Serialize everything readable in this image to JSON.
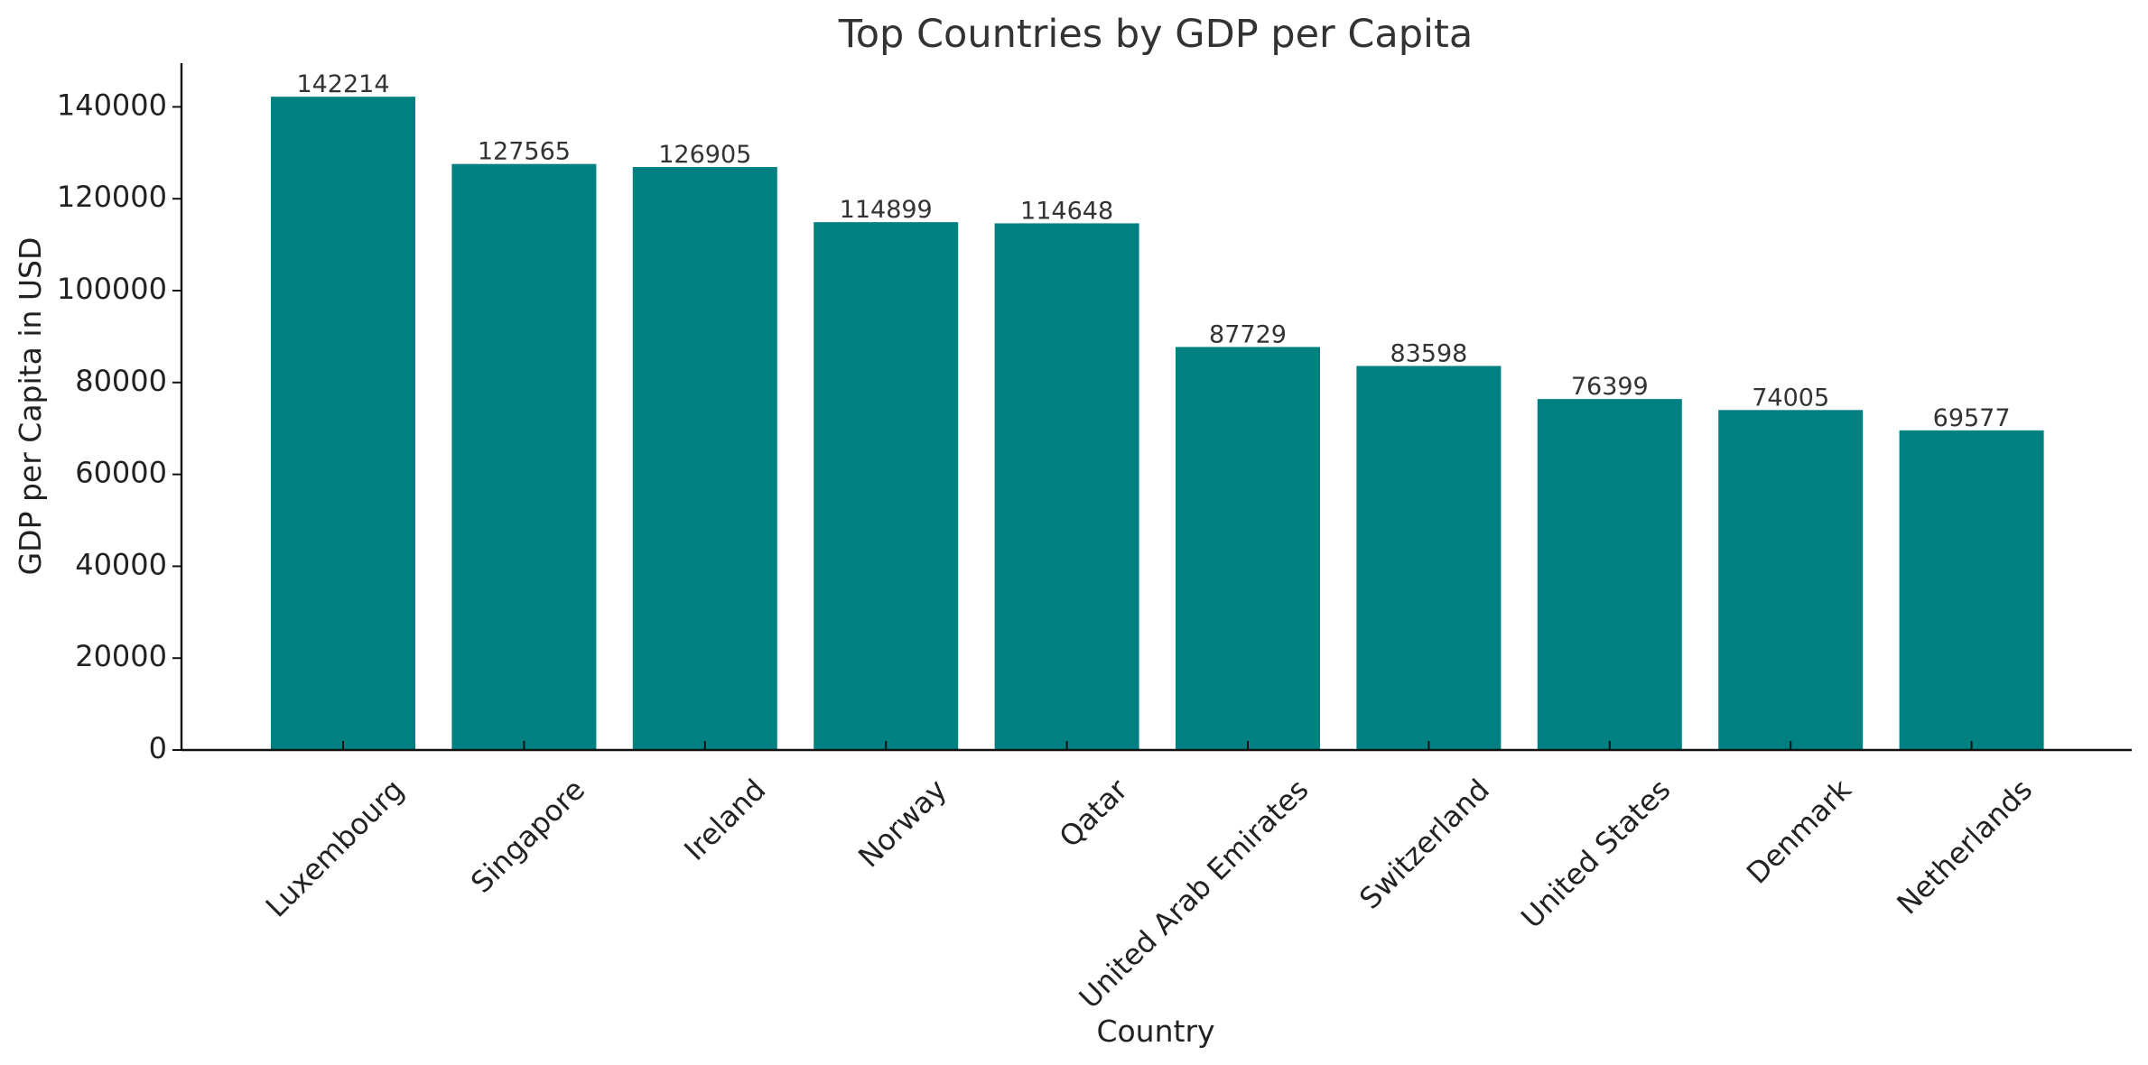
{
  "chart_data": {
    "type": "bar",
    "title": "Top Countries by GDP per Capita",
    "xlabel": "Country",
    "ylabel": "GDP per Capita in USD",
    "categories": [
      "Luxembourg",
      "Singapore",
      "Ireland",
      "Norway",
      "Qatar",
      "United Arab Emirates",
      "Switzerland",
      "United States",
      "Denmark",
      "Netherlands"
    ],
    "values": [
      142214,
      127565,
      126905,
      114899,
      114648,
      87729,
      83598,
      76399,
      74005,
      69577
    ],
    "ylim": [
      0,
      150000
    ],
    "yticks": [
      0,
      20000,
      40000,
      60000,
      80000,
      100000,
      120000,
      140000
    ],
    "grid": false,
    "bar_color": "#008080",
    "legend": "none"
  }
}
